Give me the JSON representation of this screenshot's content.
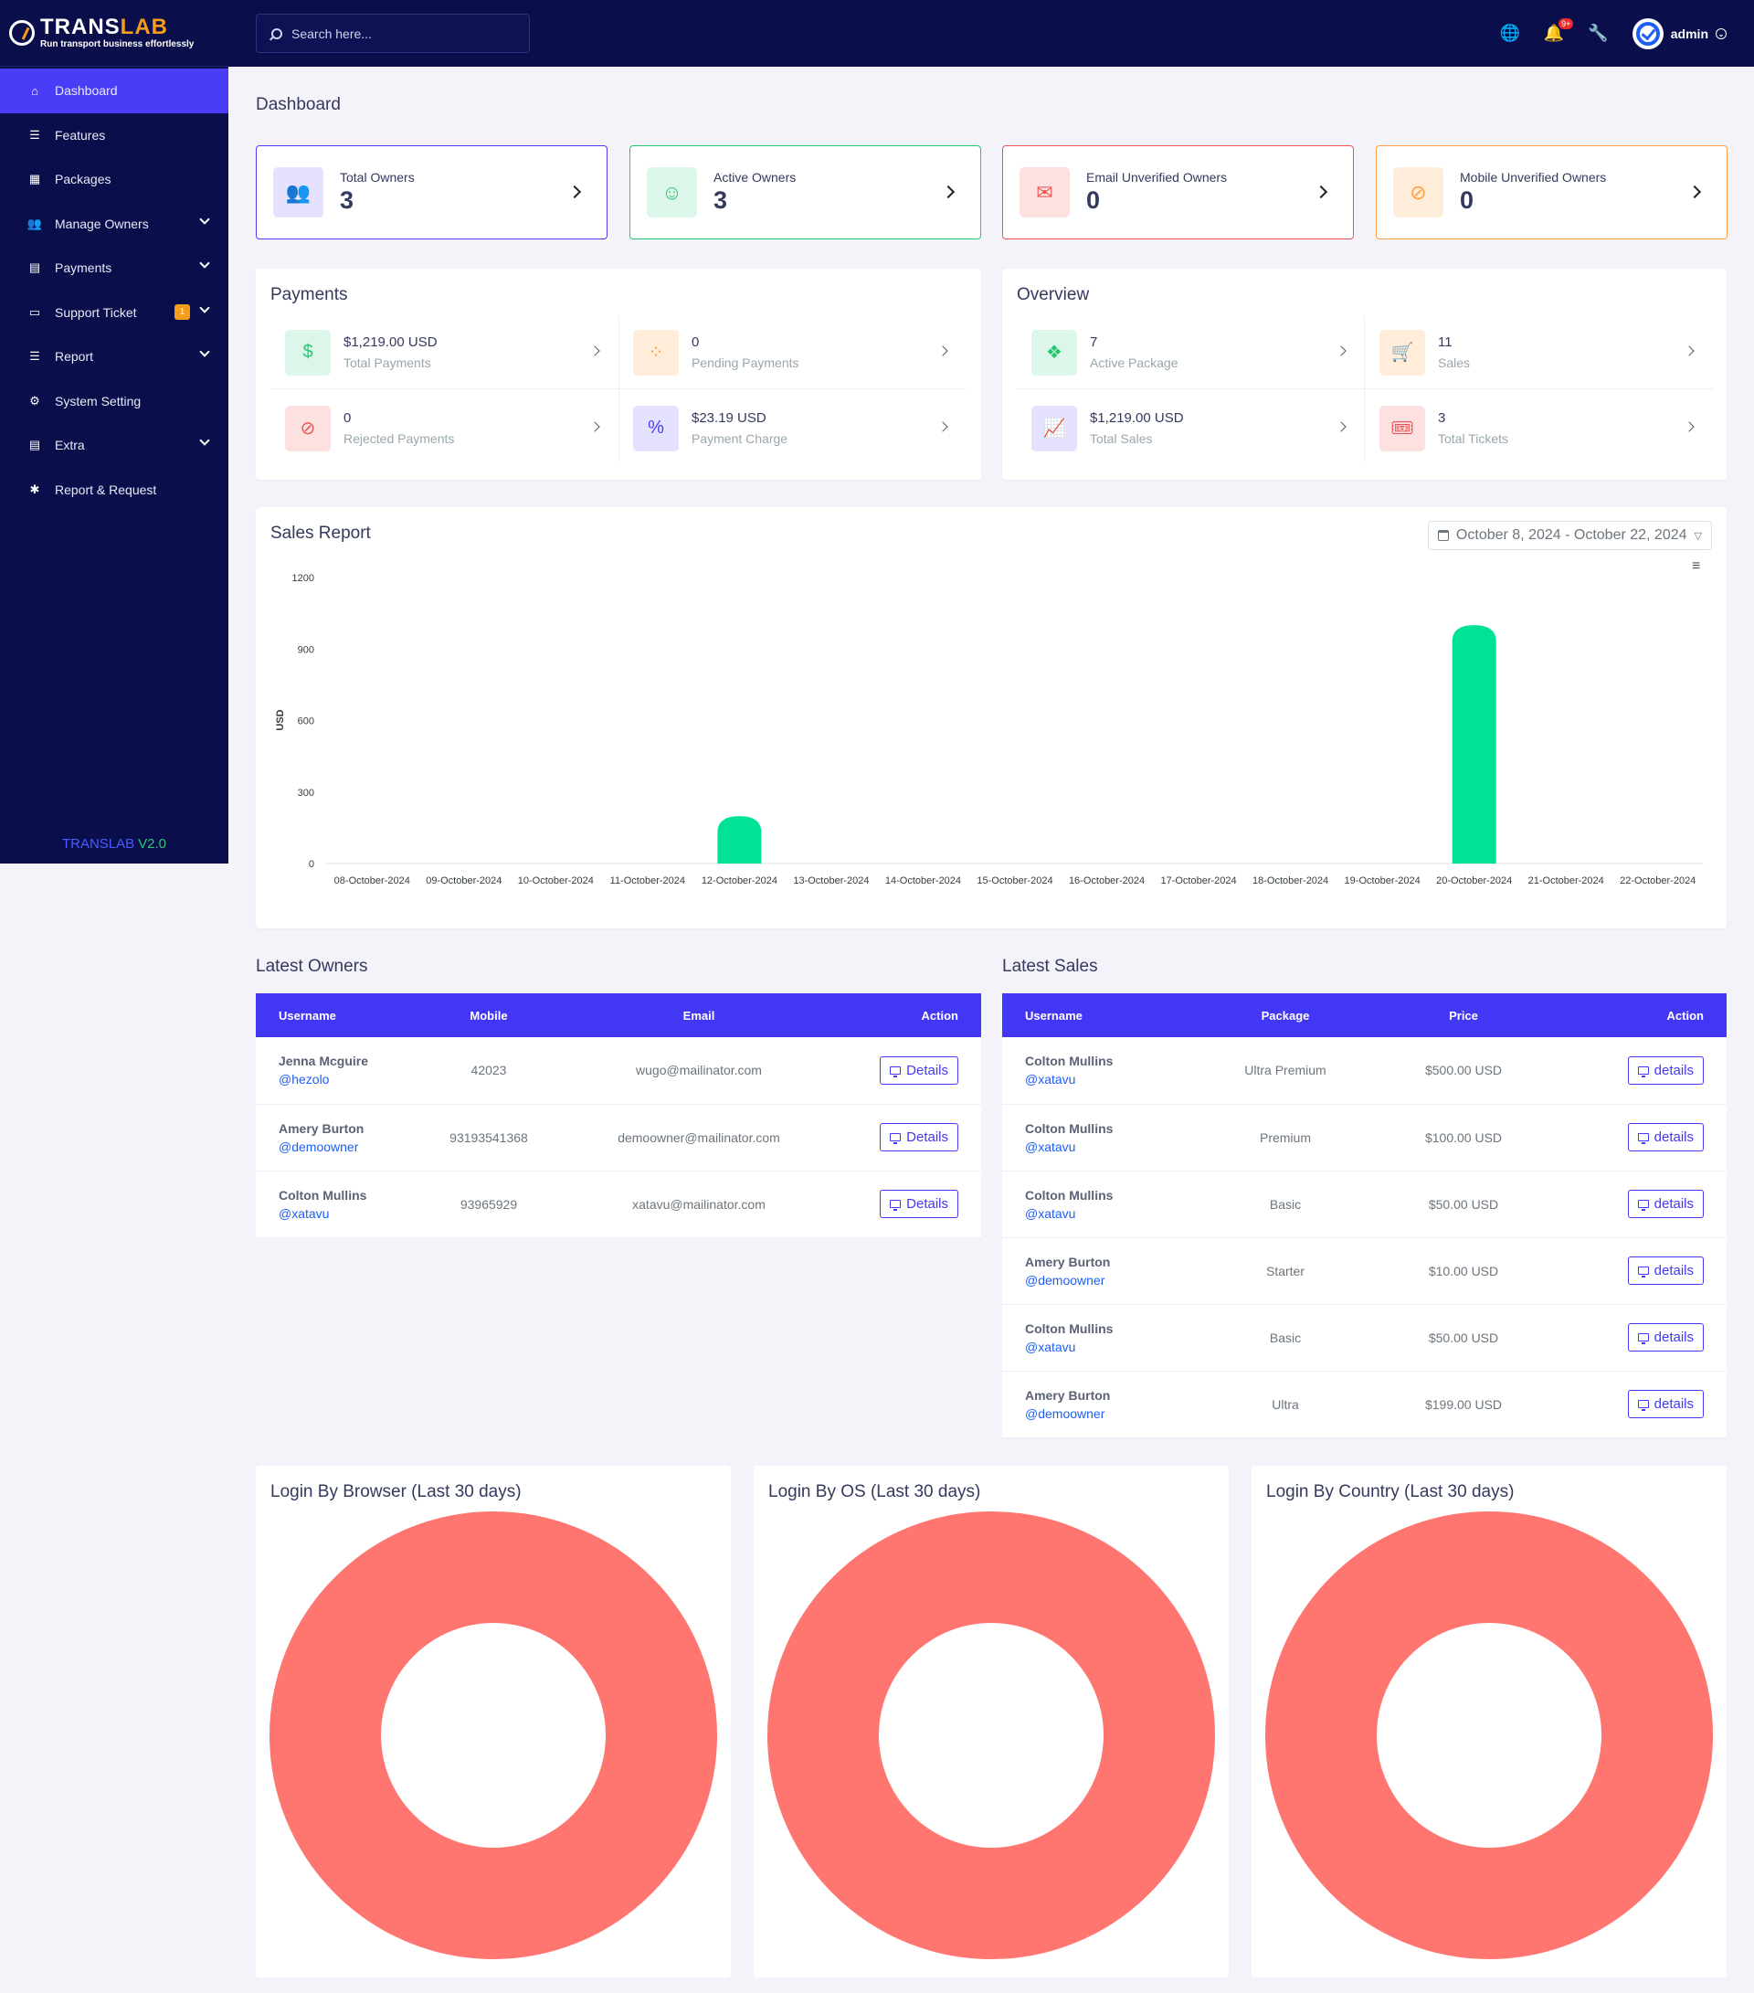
{
  "brand": {
    "name_part1": "TRANS",
    "name_part2": "LAB",
    "tagline": "Run transport business effortlessly",
    "version_name": "TRANSLAB",
    "version": "V2.0"
  },
  "sidebar": {
    "items": [
      {
        "label": "Dashboard",
        "icon": "home-icon",
        "active": true,
        "chevron": false
      },
      {
        "label": "Features",
        "icon": "list-icon",
        "chevron": false
      },
      {
        "label": "Packages",
        "icon": "boxes-icon",
        "chevron": false
      },
      {
        "label": "Manage Owners",
        "icon": "users-icon",
        "chevron": true
      },
      {
        "label": "Payments",
        "icon": "payment-icon",
        "chevron": true
      },
      {
        "label": "Support Ticket",
        "icon": "ticket-icon",
        "chevron": true,
        "badge": "1"
      },
      {
        "label": "Report",
        "icon": "report-icon",
        "chevron": true
      },
      {
        "label": "System Setting",
        "icon": "gear-icon",
        "chevron": false
      },
      {
        "label": "Extra",
        "icon": "extra-icon",
        "chevron": true
      },
      {
        "label": "Report & Request",
        "icon": "bug-icon",
        "chevron": false
      }
    ]
  },
  "topbar": {
    "search_placeholder": "Search here...",
    "notification_count": "9+",
    "username": "admin"
  },
  "page_title": "Dashboard",
  "stats": [
    {
      "label": "Total Owners",
      "value": "3",
      "color": "#4a3df7",
      "bg": "#e4e2fe",
      "icon": "users-icon",
      "glyph": "👥"
    },
    {
      "label": "Active Owners",
      "value": "3",
      "color": "#28c76f",
      "bg": "#dcf6e9",
      "icon": "user-check-icon",
      "glyph": "☺"
    },
    {
      "label": "Email Unverified Owners",
      "value": "0",
      "color": "#ea5455",
      "bg": "#fde1e1",
      "icon": "mail-icon",
      "glyph": "✉"
    },
    {
      "label": "Mobile Unverified Owners",
      "value": "0",
      "color": "#ff9f43",
      "bg": "#ffecd9",
      "icon": "mobile-off-icon",
      "glyph": "⊘"
    }
  ],
  "payments": {
    "title": "Payments",
    "items": [
      {
        "value": "$1,219.00 USD",
        "label": "Total Payments",
        "color": "#28c76f",
        "bg": "#dcf6e9",
        "icon": "hand-dollar-icon",
        "glyph": "$"
      },
      {
        "value": "0",
        "label": "Pending Payments",
        "color": "#ff9f43",
        "bg": "#ffecd9",
        "icon": "spinner-icon",
        "glyph": "⁘"
      },
      {
        "value": "0",
        "label": "Rejected Payments",
        "color": "#ea5455",
        "bg": "#fde1e1",
        "icon": "ban-icon",
        "glyph": "⊘"
      },
      {
        "value": "$23.19 USD",
        "label": "Payment Charge",
        "color": "#4a3df7",
        "bg": "#e4e2fe",
        "icon": "percent-icon",
        "glyph": "%"
      }
    ]
  },
  "overview": {
    "title": "Overview",
    "items": [
      {
        "value": "7",
        "label": "Active Package",
        "color": "#28c76f",
        "bg": "#dcf6e9",
        "icon": "cubes-icon",
        "glyph": "❖"
      },
      {
        "value": "11",
        "label": "Sales",
        "color": "#ff9f43",
        "bg": "#ffecd9",
        "icon": "cart-icon",
        "glyph": "🛒"
      },
      {
        "value": "$1,219.00 USD",
        "label": "Total Sales",
        "color": "#4a3df7",
        "bg": "#e4e2fe",
        "icon": "line-chart-icon",
        "glyph": "📈"
      },
      {
        "value": "3",
        "label": "Total Tickets",
        "color": "#ea2b2b",
        "bg": "#fde1e1",
        "icon": "ticket-icon",
        "glyph": "🎟"
      }
    ]
  },
  "sales_report": {
    "title": "Sales Report",
    "date_range": "October 8, 2024 - October 22, 2024"
  },
  "chart_data": {
    "type": "bar",
    "ylabel": "USD",
    "ylim": [
      0,
      1200
    ],
    "yticks": [
      "0",
      "300",
      "600",
      "900",
      "1200"
    ],
    "categories": [
      "08-October-2024",
      "09-October-2024",
      "10-October-2024",
      "11-October-2024",
      "12-October-2024",
      "13-October-2024",
      "14-October-2024",
      "15-October-2024",
      "16-October-2024",
      "17-October-2024",
      "18-October-2024",
      "19-October-2024",
      "20-October-2024",
      "21-October-2024",
      "22-October-2024"
    ],
    "values": [
      0,
      0,
      0,
      0,
      199,
      0,
      0,
      0,
      0,
      0,
      0,
      0,
      1000,
      0,
      0
    ],
    "color": "#00e396",
    "grid": false
  },
  "latest_owners": {
    "title": "Latest Owners",
    "columns": [
      "Username",
      "Mobile",
      "Email",
      "Action"
    ],
    "rows": [
      {
        "name": "Jenna Mcguire",
        "handle": "@hezolo",
        "mobile": "42023",
        "email": "wugo@mailinator.com",
        "action": "Details"
      },
      {
        "name": "Amery Burton",
        "handle": "@demoowner",
        "mobile": "93193541368",
        "email": "demoowner@mailinator.com",
        "action": "Details"
      },
      {
        "name": "Colton Mullins",
        "handle": "@xatavu",
        "mobile": "93965929",
        "email": "xatavu@mailinator.com",
        "action": "Details"
      }
    ]
  },
  "latest_sales": {
    "title": "Latest Sales",
    "columns": [
      "Username",
      "Package",
      "Price",
      "Action"
    ],
    "rows": [
      {
        "name": "Colton Mullins",
        "handle": "@xatavu",
        "package": "Ultra Premium",
        "price": "$500.00 USD",
        "action": "details"
      },
      {
        "name": "Colton Mullins",
        "handle": "@xatavu",
        "package": "Premium",
        "price": "$100.00 USD",
        "action": "details"
      },
      {
        "name": "Colton Mullins",
        "handle": "@xatavu",
        "package": "Basic",
        "price": "$50.00 USD",
        "action": "details"
      },
      {
        "name": "Amery Burton",
        "handle": "@demoowner",
        "package": "Starter",
        "price": "$10.00 USD",
        "action": "details"
      },
      {
        "name": "Colton Mullins",
        "handle": "@xatavu",
        "package": "Basic",
        "price": "$50.00 USD",
        "action": "details"
      },
      {
        "name": "Amery Burton",
        "handle": "@demoowner",
        "package": "Ultra",
        "price": "$199.00 USD",
        "action": "details"
      }
    ]
  },
  "login_charts": [
    {
      "title": "Login By Browser (Last 30 days)",
      "color": "#ff7570"
    },
    {
      "title": "Login By OS (Last 30 days)",
      "color": "#ff7570"
    },
    {
      "title": "Login By Country (Last 30 days)",
      "color": "#ff7570"
    }
  ]
}
